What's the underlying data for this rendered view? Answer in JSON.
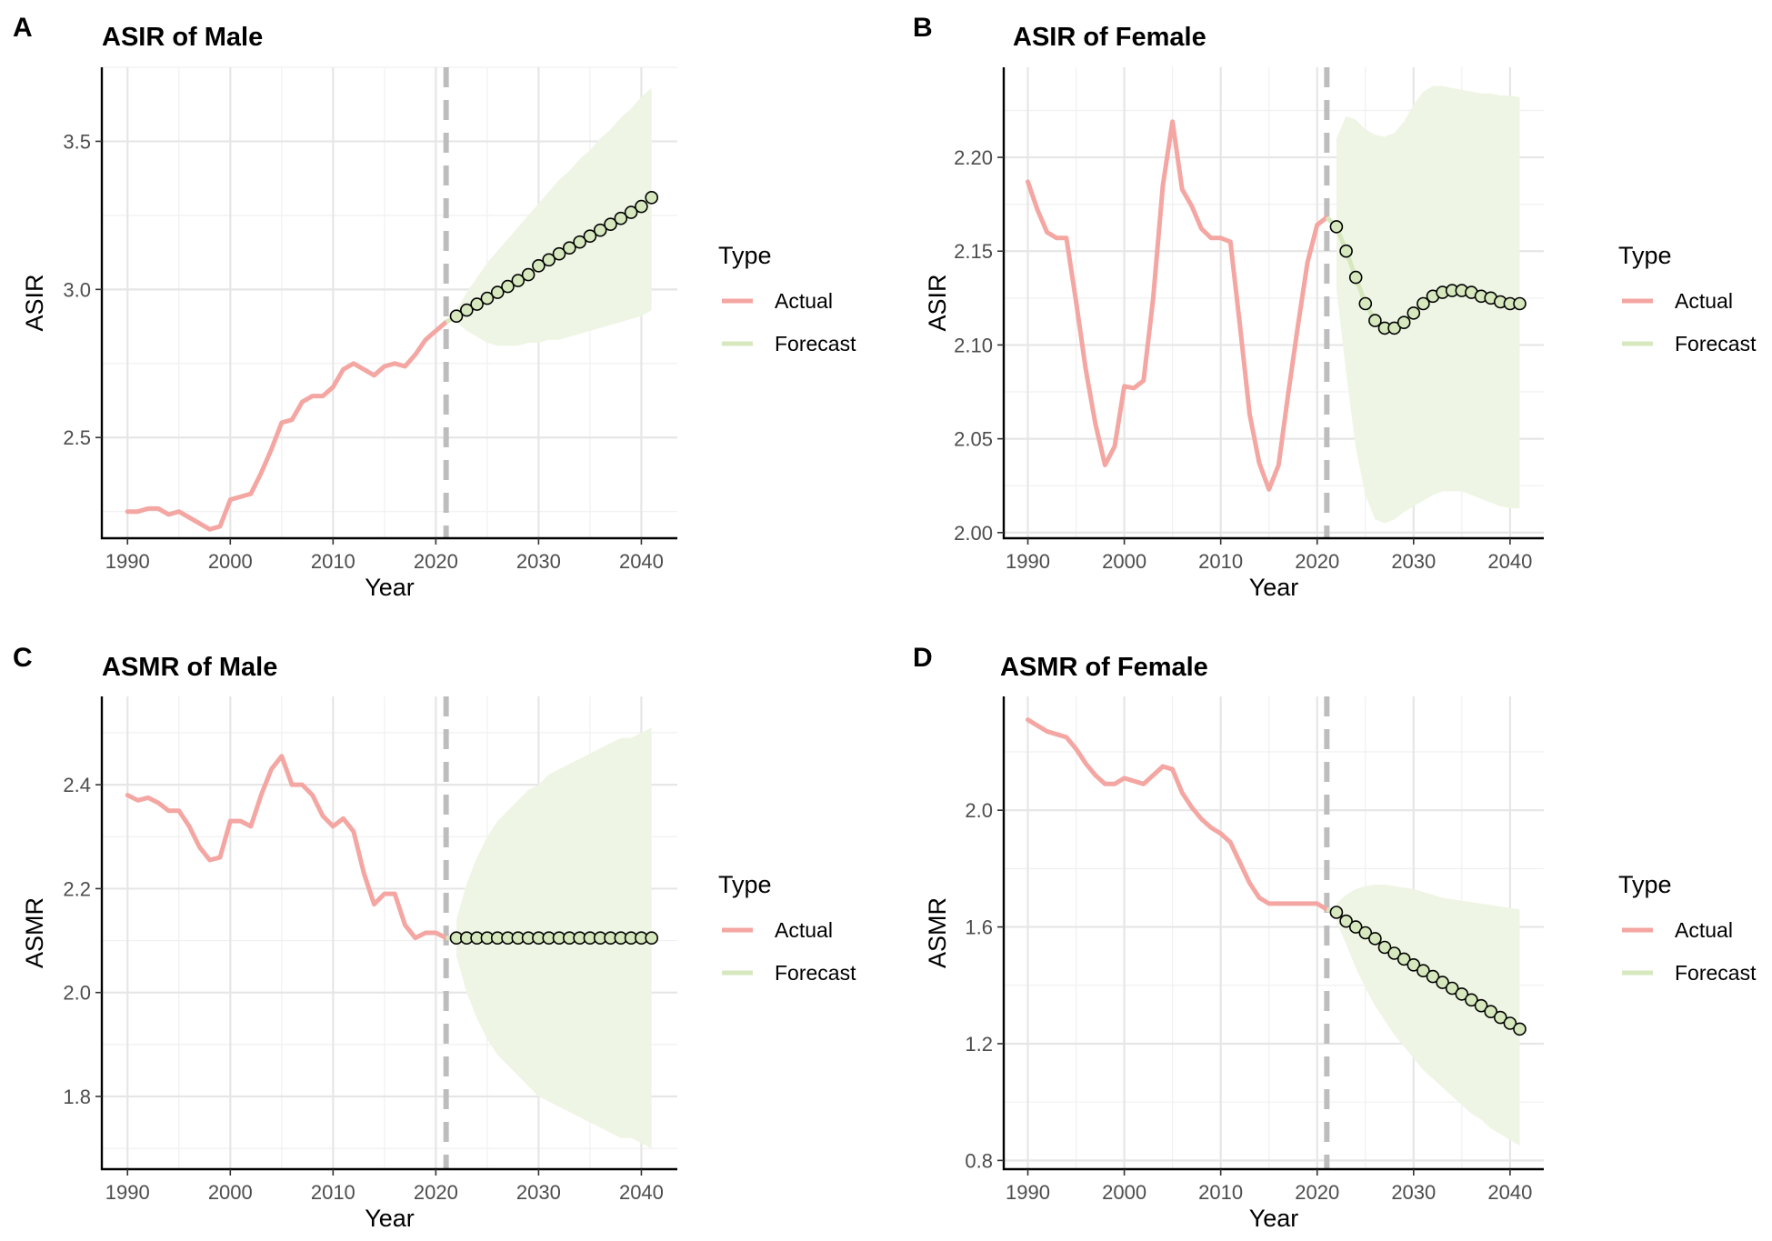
{
  "colors": {
    "actual": "#f4a6a2",
    "forecast": "#d7e8bf",
    "forecast_band": "#eef5e4",
    "marker_fill": "#d7e8bf",
    "marker_stroke": "#000000",
    "cutoff_line": "#bdbdbd"
  },
  "legend": {
    "title": "Type",
    "items": [
      "Actual",
      "Forecast"
    ]
  },
  "chart_data": [
    {
      "type": "line",
      "panel_letter": "A",
      "title": "ASIR of Male",
      "xlabel": "Year",
      "ylabel": "ASIR",
      "xlim": [
        1987.5,
        2043.5
      ],
      "ylim": [
        2.16,
        3.75
      ],
      "xticks": [
        1990,
        2000,
        2010,
        2020,
        2030,
        2040
      ],
      "xtick_labels": [
        "1990",
        "2000",
        "2010",
        "2020",
        "2030",
        "2040"
      ],
      "yticks": [
        2.5,
        3.0,
        3.5
      ],
      "ytick_labels": [
        "2.5",
        "3.0",
        "3.5"
      ],
      "cutoff_year": 2021,
      "series": [
        {
          "name": "Actual",
          "x": [
            1990,
            1991,
            1992,
            1993,
            1994,
            1995,
            1996,
            1997,
            1998,
            1999,
            2000,
            2001,
            2002,
            2003,
            2004,
            2005,
            2006,
            2007,
            2008,
            2009,
            2010,
            2011,
            2012,
            2013,
            2014,
            2015,
            2016,
            2017,
            2018,
            2019,
            2020,
            2021
          ],
          "y": [
            2.25,
            2.25,
            2.26,
            2.26,
            2.24,
            2.25,
            2.23,
            2.21,
            2.19,
            2.2,
            2.29,
            2.3,
            2.31,
            2.38,
            2.46,
            2.55,
            2.56,
            2.62,
            2.64,
            2.64,
            2.67,
            2.73,
            2.75,
            2.73,
            2.71,
            2.74,
            2.75,
            2.74,
            2.78,
            2.83,
            2.86,
            2.89
          ]
        },
        {
          "name": "Forecast",
          "x": [
            2022,
            2023,
            2024,
            2025,
            2026,
            2027,
            2028,
            2029,
            2030,
            2031,
            2032,
            2033,
            2034,
            2035,
            2036,
            2037,
            2038,
            2039,
            2040,
            2041
          ],
          "y": [
            2.91,
            2.93,
            2.95,
            2.97,
            2.99,
            3.01,
            3.03,
            3.05,
            3.08,
            3.1,
            3.12,
            3.14,
            3.16,
            3.18,
            3.2,
            3.22,
            3.24,
            3.26,
            3.28,
            3.31
          ],
          "lower": [
            2.89,
            2.86,
            2.84,
            2.82,
            2.81,
            2.81,
            2.81,
            2.82,
            2.82,
            2.83,
            2.83,
            2.84,
            2.85,
            2.86,
            2.87,
            2.88,
            2.89,
            2.9,
            2.91,
            2.93
          ],
          "upper": [
            2.93,
            2.99,
            3.04,
            3.09,
            3.13,
            3.17,
            3.21,
            3.25,
            3.29,
            3.33,
            3.37,
            3.4,
            3.44,
            3.47,
            3.51,
            3.54,
            3.58,
            3.61,
            3.65,
            3.68
          ]
        }
      ]
    },
    {
      "type": "line",
      "panel_letter": "B",
      "title": "ASIR of Female",
      "xlabel": "Year",
      "ylabel": "ASIR",
      "xlim": [
        1987.5,
        2043.5
      ],
      "ylim": [
        1.997,
        2.248
      ],
      "xticks": [
        1990,
        2000,
        2010,
        2020,
        2030,
        2040
      ],
      "xtick_labels": [
        "1990",
        "2000",
        "2010",
        "2020",
        "2030",
        "2040"
      ],
      "yticks": [
        2.0,
        2.05,
        2.1,
        2.15,
        2.2
      ],
      "ytick_labels": [
        "2.00",
        "2.05",
        "2.10",
        "2.15",
        "2.20"
      ],
      "cutoff_year": 2021,
      "series": [
        {
          "name": "Actual",
          "x": [
            1990,
            1991,
            1992,
            1993,
            1994,
            1995,
            1996,
            1997,
            1998,
            1999,
            2000,
            2001,
            2002,
            2003,
            2004,
            2005,
            2006,
            2007,
            2008,
            2009,
            2010,
            2011,
            2012,
            2013,
            2014,
            2015,
            2016,
            2017,
            2018,
            2019,
            2020,
            2021
          ],
          "y": [
            2.187,
            2.172,
            2.16,
            2.157,
            2.157,
            2.123,
            2.087,
            2.058,
            2.036,
            2.046,
            2.078,
            2.077,
            2.081,
            2.125,
            2.185,
            2.219,
            2.183,
            2.174,
            2.162,
            2.157,
            2.157,
            2.155,
            2.11,
            2.063,
            2.037,
            2.023,
            2.036,
            2.074,
            2.11,
            2.144,
            2.164,
            2.168
          ]
        },
        {
          "name": "Forecast",
          "x": [
            2022,
            2023,
            2024,
            2025,
            2026,
            2027,
            2028,
            2029,
            2030,
            2031,
            2032,
            2033,
            2034,
            2035,
            2036,
            2037,
            2038,
            2039,
            2040,
            2041
          ],
          "y": [
            2.163,
            2.15,
            2.136,
            2.122,
            2.113,
            2.109,
            2.109,
            2.112,
            2.117,
            2.122,
            2.126,
            2.128,
            2.129,
            2.129,
            2.128,
            2.126,
            2.125,
            2.123,
            2.122,
            2.122
          ],
          "lower": [
            2.13,
            2.085,
            2.045,
            2.02,
            2.007,
            2.005,
            2.007,
            2.011,
            2.014,
            2.017,
            2.02,
            2.022,
            2.022,
            2.022,
            2.02,
            2.018,
            2.016,
            2.014,
            2.013,
            2.013
          ],
          "upper": [
            2.21,
            2.222,
            2.22,
            2.215,
            2.212,
            2.211,
            2.213,
            2.219,
            2.228,
            2.235,
            2.238,
            2.238,
            2.237,
            2.236,
            2.235,
            2.234,
            2.234,
            2.233,
            2.233,
            2.232
          ]
        }
      ]
    },
    {
      "type": "line",
      "panel_letter": "C",
      "title": "ASMR of Male",
      "xlabel": "Year",
      "ylabel": "ASMR",
      "xlim": [
        1987.5,
        2043.5
      ],
      "ylim": [
        1.66,
        2.57
      ],
      "xticks": [
        1990,
        2000,
        2010,
        2020,
        2030,
        2040
      ],
      "xtick_labels": [
        "1990",
        "2000",
        "2010",
        "2020",
        "2030",
        "2040"
      ],
      "yticks": [
        1.8,
        2.0,
        2.2,
        2.4
      ],
      "ytick_labels": [
        "1.8",
        "2.0",
        "2.2",
        "2.4"
      ],
      "cutoff_year": 2021,
      "series": [
        {
          "name": "Actual",
          "x": [
            1990,
            1991,
            1992,
            1993,
            1994,
            1995,
            1996,
            1997,
            1998,
            1999,
            2000,
            2001,
            2002,
            2003,
            2004,
            2005,
            2006,
            2007,
            2008,
            2009,
            2010,
            2011,
            2012,
            2013,
            2014,
            2015,
            2016,
            2017,
            2018,
            2019,
            2020,
            2021
          ],
          "y": [
            2.38,
            2.37,
            2.375,
            2.365,
            2.35,
            2.35,
            2.32,
            2.28,
            2.255,
            2.26,
            2.33,
            2.33,
            2.32,
            2.38,
            2.43,
            2.455,
            2.4,
            2.4,
            2.38,
            2.34,
            2.32,
            2.335,
            2.31,
            2.23,
            2.17,
            2.19,
            2.19,
            2.13,
            2.105,
            2.115,
            2.115,
            2.105
          ]
        },
        {
          "name": "Forecast",
          "x": [
            2022,
            2023,
            2024,
            2025,
            2026,
            2027,
            2028,
            2029,
            2030,
            2031,
            2032,
            2033,
            2034,
            2035,
            2036,
            2037,
            2038,
            2039,
            2040,
            2041
          ],
          "y": [
            2.105,
            2.105,
            2.105,
            2.105,
            2.105,
            2.105,
            2.105,
            2.105,
            2.105,
            2.105,
            2.105,
            2.105,
            2.105,
            2.105,
            2.105,
            2.105,
            2.105,
            2.105,
            2.105,
            2.105
          ],
          "lower": [
            2.07,
            2.0,
            1.95,
            1.91,
            1.88,
            1.86,
            1.84,
            1.82,
            1.8,
            1.79,
            1.78,
            1.77,
            1.76,
            1.75,
            1.74,
            1.73,
            1.72,
            1.72,
            1.71,
            1.7
          ],
          "upper": [
            2.14,
            2.21,
            2.26,
            2.3,
            2.33,
            2.35,
            2.37,
            2.39,
            2.4,
            2.42,
            2.43,
            2.44,
            2.45,
            2.46,
            2.47,
            2.48,
            2.49,
            2.49,
            2.5,
            2.51
          ]
        }
      ]
    },
    {
      "type": "line",
      "panel_letter": "D",
      "title": "ASMR of Female",
      "xlabel": "Year",
      "ylabel": "ASMR",
      "xlim": [
        1987.5,
        2043.5
      ],
      "ylim": [
        0.77,
        2.39
      ],
      "xticks": [
        1990,
        2000,
        2010,
        2020,
        2030,
        2040
      ],
      "xtick_labels": [
        "1990",
        "2000",
        "2010",
        "2020",
        "2030",
        "2040"
      ],
      "yticks": [
        0.8,
        1.2,
        1.6,
        2.0
      ],
      "ytick_labels": [
        "0.8",
        "1.2",
        "1.6",
        "2.0"
      ],
      "cutoff_year": 2021,
      "series": [
        {
          "name": "Actual",
          "x": [
            1990,
            1991,
            1992,
            1993,
            1994,
            1995,
            1996,
            1997,
            1998,
            1999,
            2000,
            2001,
            2002,
            2003,
            2004,
            2005,
            2006,
            2007,
            2008,
            2009,
            2010,
            2011,
            2012,
            2013,
            2014,
            2015,
            2016,
            2017,
            2018,
            2019,
            2020,
            2021
          ],
          "y": [
            2.31,
            2.29,
            2.27,
            2.26,
            2.25,
            2.21,
            2.16,
            2.12,
            2.09,
            2.09,
            2.11,
            2.1,
            2.09,
            2.12,
            2.15,
            2.14,
            2.06,
            2.01,
            1.97,
            1.94,
            1.92,
            1.89,
            1.82,
            1.75,
            1.7,
            1.68,
            1.68,
            1.68,
            1.68,
            1.68,
            1.68,
            1.66
          ]
        },
        {
          "name": "Forecast",
          "x": [
            2022,
            2023,
            2024,
            2025,
            2026,
            2027,
            2028,
            2029,
            2030,
            2031,
            2032,
            2033,
            2034,
            2035,
            2036,
            2037,
            2038,
            2039,
            2040,
            2041
          ],
          "y": [
            1.65,
            1.62,
            1.6,
            1.58,
            1.56,
            1.53,
            1.51,
            1.49,
            1.47,
            1.45,
            1.43,
            1.41,
            1.39,
            1.37,
            1.35,
            1.33,
            1.31,
            1.29,
            1.27,
            1.25
          ],
          "lower": [
            1.62,
            1.54,
            1.46,
            1.39,
            1.33,
            1.28,
            1.23,
            1.19,
            1.15,
            1.11,
            1.08,
            1.05,
            1.02,
            0.99,
            0.96,
            0.94,
            0.91,
            0.89,
            0.87,
            0.85
          ],
          "upper": [
            1.68,
            1.71,
            1.73,
            1.74,
            1.745,
            1.745,
            1.74,
            1.735,
            1.73,
            1.72,
            1.71,
            1.7,
            1.695,
            1.69,
            1.685,
            1.68,
            1.675,
            1.67,
            1.665,
            1.66
          ]
        }
      ]
    }
  ]
}
